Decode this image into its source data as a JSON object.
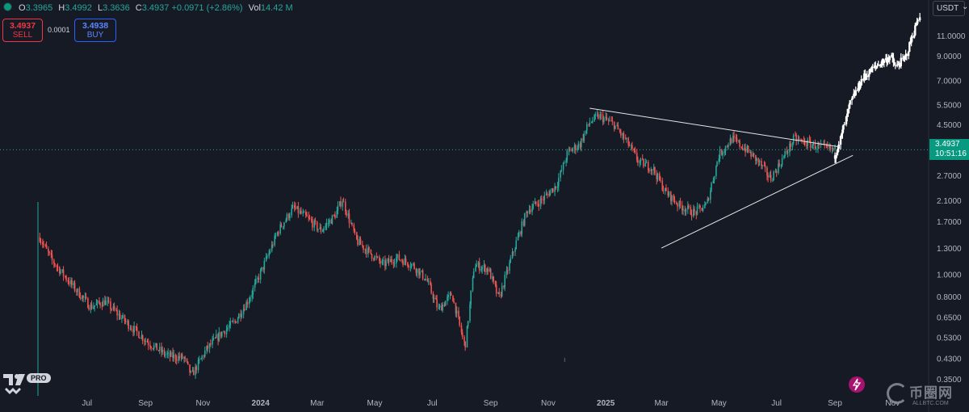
{
  "legend": {
    "o_label": "O",
    "o_value": "3.3965",
    "h_label": "H",
    "h_value": "3.4992",
    "l_label": "L",
    "l_value": "3.3636",
    "c_label": "C",
    "c_value": "3.4937",
    "change": "+0.0971 (+2.86%)",
    "vol_label": "Vol",
    "vol_value": "14.42 M"
  },
  "trade": {
    "sell_price": "3.4937",
    "sell_label": "SELL",
    "spread": "0.0001",
    "buy_price": "3.4938",
    "buy_label": "BUY"
  },
  "currency_unit": "USDT",
  "current_price": {
    "price": "3.4937",
    "countdown": "10:51:16"
  },
  "branding": {
    "pro_badge": "PRO",
    "watermark_text": "币圈网",
    "watermark_url": "ALLBTC.COM"
  },
  "colors": {
    "background": "#161a25",
    "up": "#26a69a",
    "down": "#ef5350",
    "projection": "#ffffff",
    "trendline": "#e6e6e6",
    "price_line": "#26a69a"
  },
  "icons": {
    "symbol": "status-dot-icon",
    "logo": "tradingview-logo-icon",
    "assistant": "lightning-icon",
    "watermark": "swirl-logo-icon"
  },
  "chart_data": {
    "type": "candlestick",
    "scale": "log",
    "title": "",
    "xlabel": "",
    "ylabel": "",
    "grid": false,
    "ylim": [
      0.33,
      14.5
    ],
    "x_tick_labels": [
      "Jul",
      "Sep",
      "Nov",
      "2024",
      "Mar",
      "May",
      "Jul",
      "Sep",
      "Nov",
      "2025",
      "Mar",
      "May",
      "Jul",
      "Sep",
      "Nov"
    ],
    "y_tick_labels": [
      "11.0000",
      "9.0000",
      "7.0000",
      "5.5000",
      "4.5000",
      "2.7000",
      "2.1000",
      "1.7000",
      "1.3000",
      "1.0000",
      "0.8000",
      "0.6500",
      "0.5300",
      "0.4300",
      "0.3500"
    ],
    "y_tick_values": [
      11.0,
      9.0,
      7.0,
      5.5,
      4.5,
      2.7,
      2.1,
      1.7,
      1.3,
      1.0,
      0.8,
      0.65,
      0.53,
      0.43,
      0.35
    ],
    "last_price": 3.4937,
    "series": [
      {
        "kind": "price",
        "points": [
          [
            "2023-05-12",
            1.45
          ],
          [
            "2023-05-25",
            1.15
          ],
          [
            "2023-06-15",
            0.9
          ],
          [
            "2023-07-05",
            0.72
          ],
          [
            "2023-07-20",
            0.76
          ],
          [
            "2023-08-15",
            0.6
          ],
          [
            "2023-09-05",
            0.5
          ],
          [
            "2023-09-25",
            0.44
          ],
          [
            "2023-10-12",
            0.43
          ],
          [
            "2023-10-20",
            0.36
          ],
          [
            "2023-11-05",
            0.47
          ],
          [
            "2023-11-20",
            0.55
          ],
          [
            "2023-12-05",
            0.62
          ],
          [
            "2023-12-20",
            0.78
          ],
          [
            "2024-01-05",
            1.1
          ],
          [
            "2024-01-20",
            1.55
          ],
          [
            "2024-02-05",
            1.95
          ],
          [
            "2024-02-20",
            1.75
          ],
          [
            "2024-03-05",
            1.55
          ],
          [
            "2024-03-20",
            1.8
          ],
          [
            "2024-03-28",
            2.12
          ],
          [
            "2024-04-12",
            1.4
          ],
          [
            "2024-04-25",
            1.25
          ],
          [
            "2024-05-10",
            1.1
          ],
          [
            "2024-05-25",
            1.18
          ],
          [
            "2024-06-10",
            1.1
          ],
          [
            "2024-06-25",
            0.95
          ],
          [
            "2024-07-08",
            0.7
          ],
          [
            "2024-07-22",
            0.82
          ],
          [
            "2024-08-05",
            0.48
          ],
          [
            "2024-08-15",
            1.1
          ],
          [
            "2024-08-30",
            1.05
          ],
          [
            "2024-09-10",
            0.78
          ],
          [
            "2024-09-25",
            1.25
          ],
          [
            "2024-10-10",
            1.9
          ],
          [
            "2024-10-25",
            2.1
          ],
          [
            "2024-11-10",
            2.45
          ],
          [
            "2024-11-22",
            3.4
          ],
          [
            "2024-12-05",
            3.7
          ],
          [
            "2024-12-15",
            4.6
          ],
          [
            "2024-12-25",
            4.9
          ],
          [
            "2025-01-10",
            4.5
          ],
          [
            "2025-01-25",
            3.7
          ],
          [
            "2025-02-05",
            3.1
          ],
          [
            "2025-02-20",
            2.9
          ],
          [
            "2025-03-05",
            2.3
          ],
          [
            "2025-03-20",
            2.0
          ],
          [
            "2025-04-05",
            1.85
          ],
          [
            "2025-04-18",
            2.0
          ],
          [
            "2025-05-01",
            3.3
          ],
          [
            "2025-05-15",
            3.9
          ],
          [
            "2025-05-30",
            3.5
          ],
          [
            "2025-06-12",
            3.1
          ],
          [
            "2025-06-25",
            2.6
          ],
          [
            "2025-07-08",
            3.2
          ],
          [
            "2025-07-20",
            3.9
          ],
          [
            "2025-08-05",
            3.7
          ],
          [
            "2025-08-20",
            3.55
          ],
          [
            "2025-09-01",
            3.4937
          ]
        ]
      },
      {
        "kind": "projection",
        "points": [
          [
            "2025-09-01",
            3.3
          ],
          [
            "2025-09-08",
            4.0
          ],
          [
            "2025-09-18",
            5.6
          ],
          [
            "2025-10-01",
            7.2
          ],
          [
            "2025-10-15",
            8.1
          ],
          [
            "2025-10-30",
            8.9
          ],
          [
            "2025-11-05",
            8.0
          ],
          [
            "2025-11-15",
            8.8
          ],
          [
            "2025-11-25",
            11.8
          ],
          [
            "2025-12-01",
            14.0
          ]
        ]
      },
      {
        "kind": "trendline-upper",
        "points": [
          [
            "2024-12-15",
            5.3
          ],
          [
            "2025-09-05",
            3.6
          ]
        ]
      },
      {
        "kind": "trendline-lower",
        "points": [
          [
            "2025-03-01",
            1.3
          ],
          [
            "2025-09-20",
            3.3
          ]
        ]
      }
    ]
  }
}
